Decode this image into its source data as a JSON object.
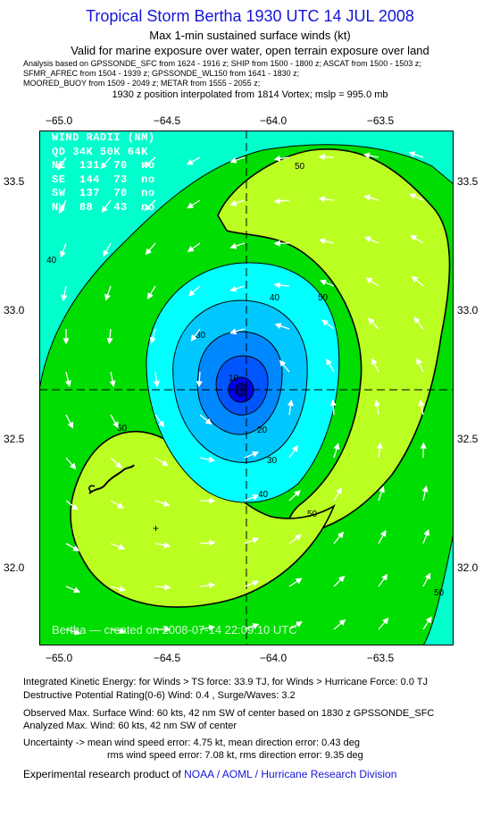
{
  "header": {
    "title": "Tropical Storm Bertha 1930 UTC 14 JUL 2008",
    "subtitle1": "Max 1-min sustained surface winds (kt)",
    "subtitle2": "Valid for marine exposure over water, open terrain exposure over land",
    "analysis_lines": [
      "Analysis based on  GPSSONDE_SFC from 1624 - 1916 z;  SHIP from 1500 - 1800 z;  ASCAT from 1500 - 1503 z;",
      "SFMR_AFREC from 1504 - 1939 z;  GPSSONDE_WL150 from 1641 - 1830 z;",
      "MOORED_BUOY from 1509 - 2049 z;  METAR from 1555 - 2055 z;"
    ],
    "position_note": "1930 z position interpolated from 1814 Vortex; mslp = 995.0 mb"
  },
  "map": {
    "lon_labels": [
      "−65.0",
      "−64.5",
      "−64.0",
      "−63.5"
    ],
    "lat_labels": [
      "33.5",
      "33.0",
      "32.5",
      "32.0"
    ],
    "contour_labels": [
      "10",
      "20",
      "30",
      "40",
      "50"
    ],
    "colors": {
      "teal": "#00ffcc",
      "cyan": "#00ffff",
      "green": "#00dd00",
      "lime": "#bbff22",
      "blue_dark": "#0000ee",
      "blue_mid": "#0088ff"
    },
    "wind_radii": {
      "header": "WIND RADII (NM)",
      "columns": [
        "QD",
        "34K",
        "50K",
        "64K"
      ],
      "rows": [
        {
          "qd": "NE",
          "r34": "131",
          "r50": "70",
          "r64": "no"
        },
        {
          "qd": "SE",
          "r34": "144",
          "r50": "73",
          "r64": "no"
        },
        {
          "qd": "SW",
          "r34": "137",
          "r50": "70",
          "r64": "no"
        },
        {
          "qd": "NW",
          "r34": "88",
          "r50": "43",
          "r64": "no"
        }
      ]
    },
    "credit": "Bertha — created on 2008-07-14 22:09:10 UTC"
  },
  "footer": {
    "ike": "Integrated Kinetic Energy:  for Winds > TS force: 33.9 TJ,  for Winds > Hurricane Force: 0.0 TJ",
    "dpr": "Destructive Potential Rating(0-6)   Wind: 0.4 , Surge/Waves: 3.2",
    "observed": "Observed Max. Surface Wind: 60 kts, 42 nm SW of center based on 1830 z GPSSONDE_SFC",
    "analyzed": "Analyzed Max. Wind: 60 kts, 42 nm SW of center",
    "uncertainty": "Uncertainty -> mean wind speed error: 4.75 kt,   mean direction error: 0.43 deg",
    "rms": "rms wind speed error: 7.08 kt,   rms direction error: 9.35 deg",
    "product_prefix": "Experimental research product of ",
    "product_org": "NOAA / AOML / Hurricane Research Division"
  }
}
